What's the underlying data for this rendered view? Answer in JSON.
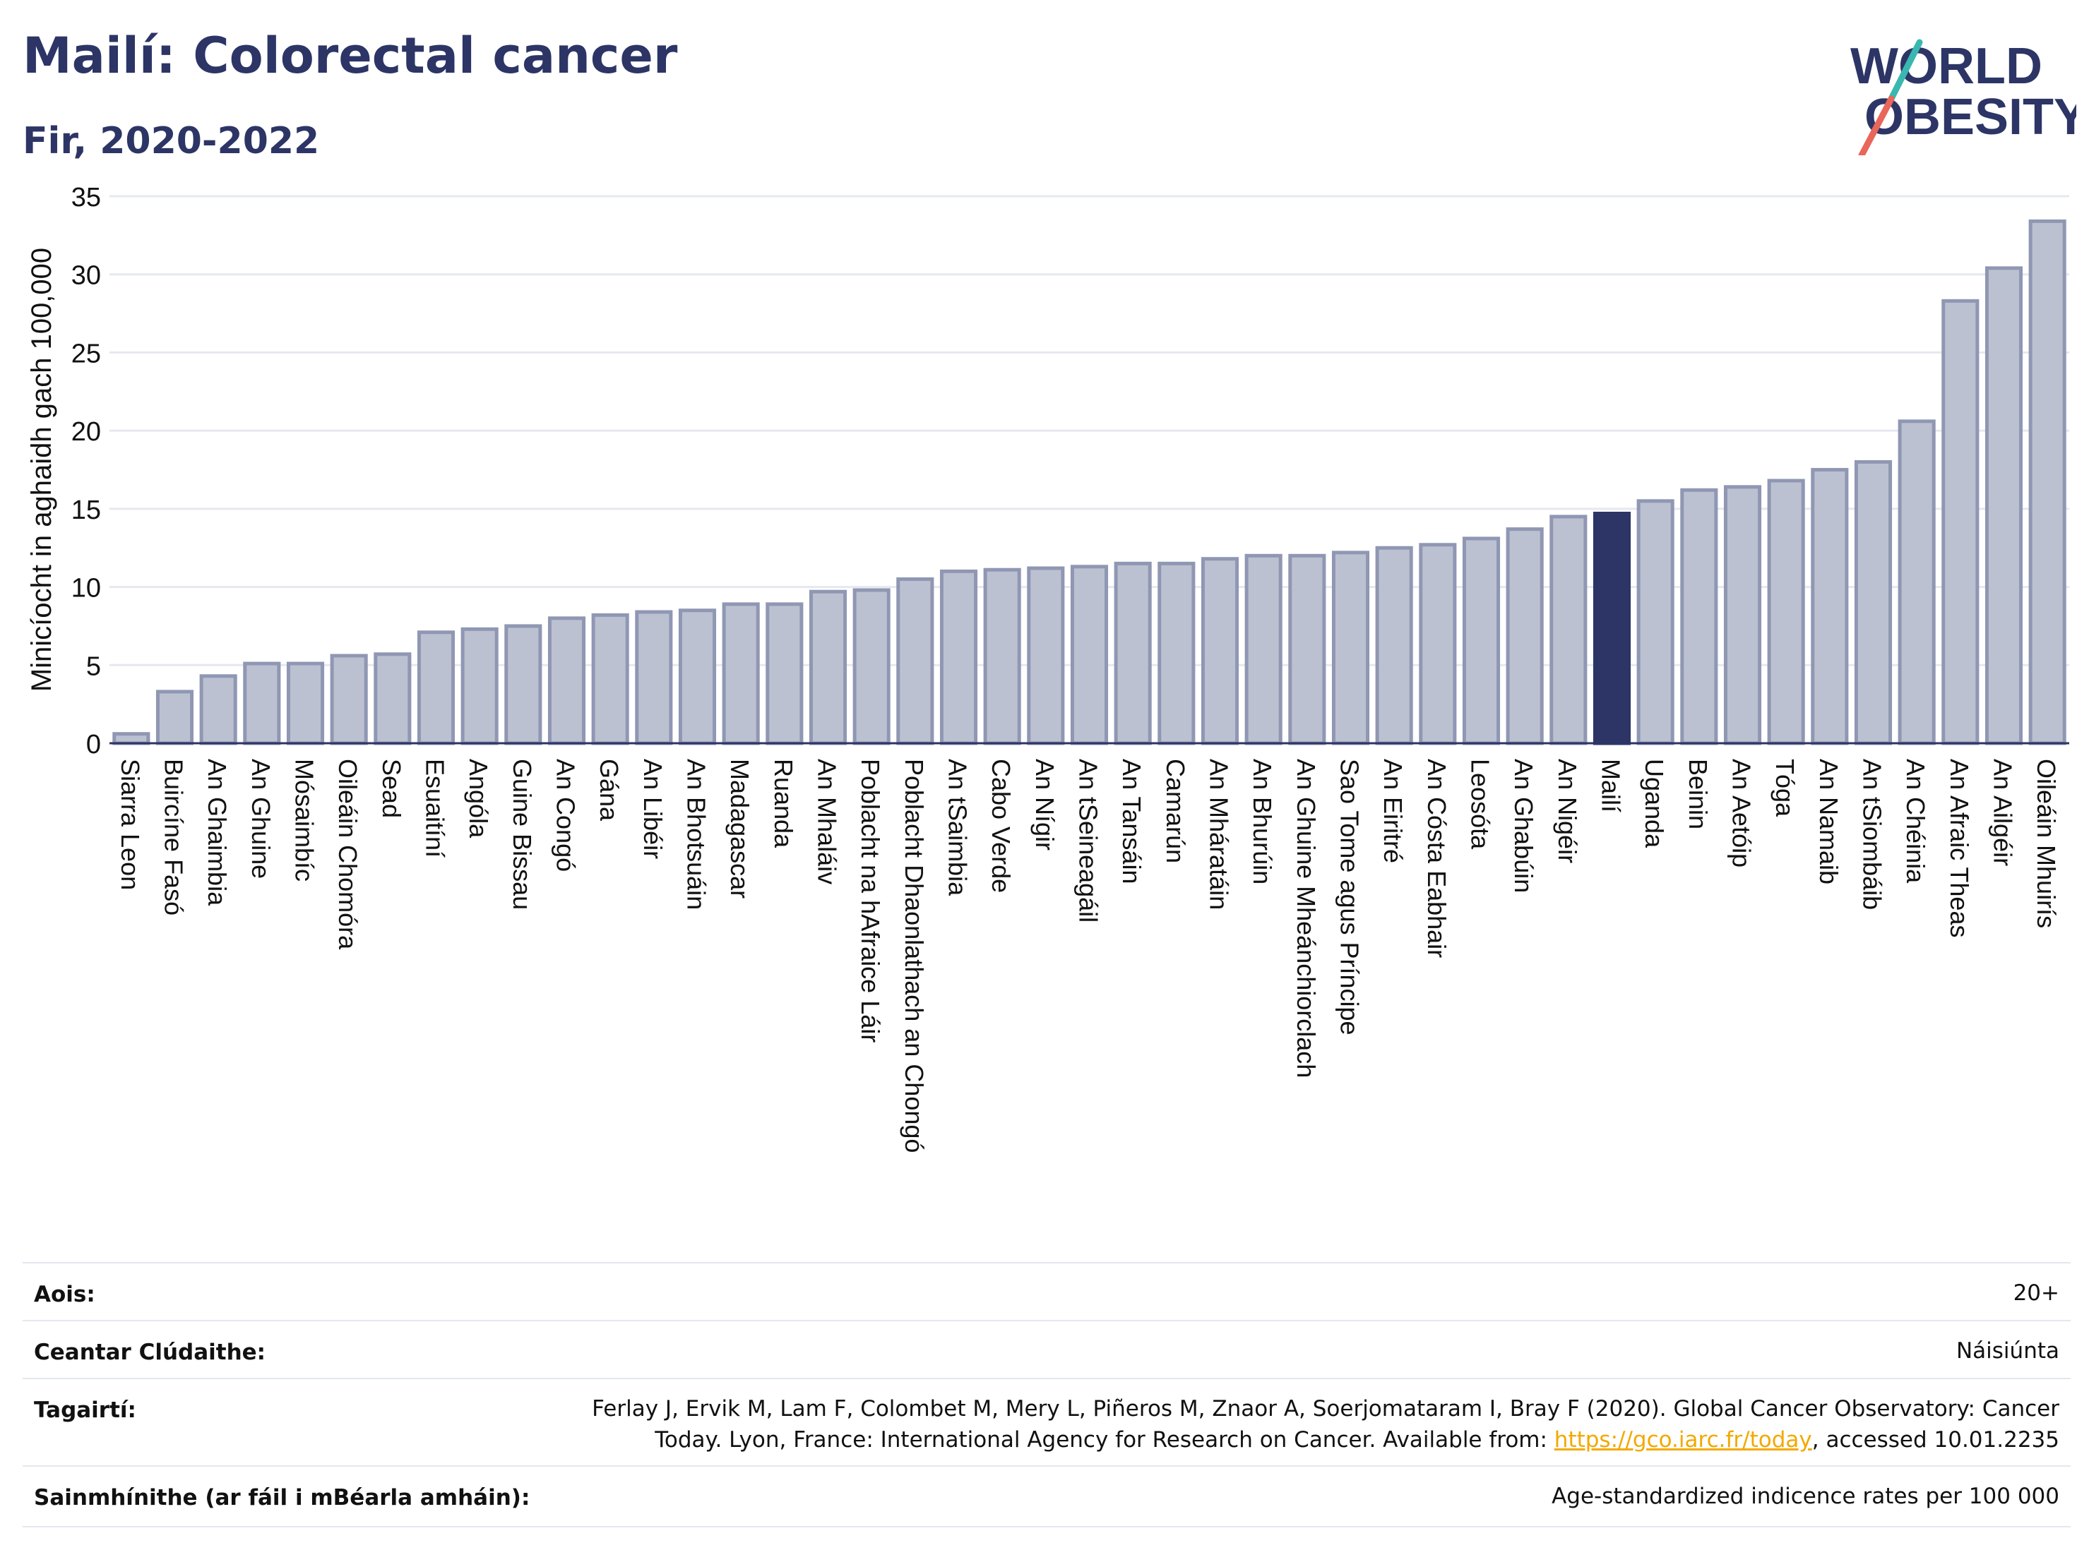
{
  "header": {
    "title": "Mailí: Colorectal cancer",
    "subtitle": "Fir, 2020-2022"
  },
  "logo": {
    "line1": "WORLD",
    "line2": "OBESITY",
    "colors": {
      "text": "#2c3565",
      "slash_teal": "#3ab7b0",
      "slash_red": "#e8665a"
    }
  },
  "chart_data": {
    "type": "bar",
    "title": "",
    "xlabel": "",
    "ylabel": "Minicíocht in aghaidh gach 100,000",
    "ylim": [
      0,
      35
    ],
    "yticks": [
      0,
      5,
      10,
      15,
      20,
      25,
      30,
      35
    ],
    "grid": true,
    "highlight": "Mailí",
    "colors": {
      "bar": "#bcc1d1",
      "bar_edge": "#8f97b3",
      "highlight": "#2c3565",
      "grid": "#e6e8ef"
    },
    "categories": [
      "Siarra Leon",
      "Buircíne Fasó",
      "An Ghaimbia",
      "An Ghuine",
      "Mósaimbíc",
      "Oileáin Chomóra",
      "Sead",
      "Esuaitíní",
      "Angóla",
      "Guine Bissau",
      "An Congó",
      "Gána",
      "An Libéir",
      "An Bhotsuáin",
      "Madagascar",
      "Ruanda",
      "An Mhaláiv",
      "Poblacht na hAfraice Láir",
      "Poblacht Dhaonlathach an Chongó",
      "An tSaimbia",
      "Cabo Verde",
      "An Nígir",
      "An tSeineagáil",
      "An Tansáin",
      "Camarún",
      "An Mháratáin",
      "An Bhurúin",
      "An Ghuine Mheánchiorclach",
      "Sao Tome agus Príncipe",
      "An Eiritré",
      "An Cósta Eabhair",
      "Leosóta",
      "An Ghabúin",
      "An Nigéir",
      "Mailí",
      "Uganda",
      "Beinin",
      "An Aetóip",
      "Tóga",
      "An Namaib",
      "An tSiombáib",
      "An Chéinia",
      "An Afraic Theas",
      "An Ailgéir",
      "Oileáin Mhuirís"
    ],
    "values": [
      0.6,
      3.3,
      4.3,
      5.1,
      5.1,
      5.6,
      5.7,
      7.1,
      7.3,
      7.5,
      8.0,
      8.2,
      8.4,
      8.5,
      8.9,
      8.9,
      9.7,
      9.8,
      10.5,
      11.0,
      11.1,
      11.2,
      11.3,
      11.5,
      11.5,
      11.8,
      12.0,
      12.0,
      12.2,
      12.5,
      12.7,
      13.1,
      13.7,
      14.5,
      14.7,
      15.5,
      16.2,
      16.4,
      16.8,
      17.5,
      18.0,
      20.6,
      28.3,
      30.4,
      33.4
    ]
  },
  "info": {
    "age_label": "Aois:",
    "age_value": "20+",
    "area_label": "Ceantar Clúdaithe:",
    "area_value": "Náisiúnta",
    "ref_label": "Tagairtí:",
    "ref_line1": "Ferlay J, Ervik M, Lam F, Colombet M, Mery L, Piñeros M, Znaor A, Soerjomataram I, Bray F (2020). Global Cancer Observatory: Cancer",
    "ref_line2_pre": "Today. Lyon, France: International Agency for Research on Cancer. Available from: ",
    "ref_link": "https://gco.iarc.fr/today",
    "ref_line2_post": ", accessed 10.01.2235",
    "def_label": "Sainmhínithe (ar fáil i mBéarla amháin):",
    "def_value": "Age-standardized indicence rates per 100 000"
  }
}
